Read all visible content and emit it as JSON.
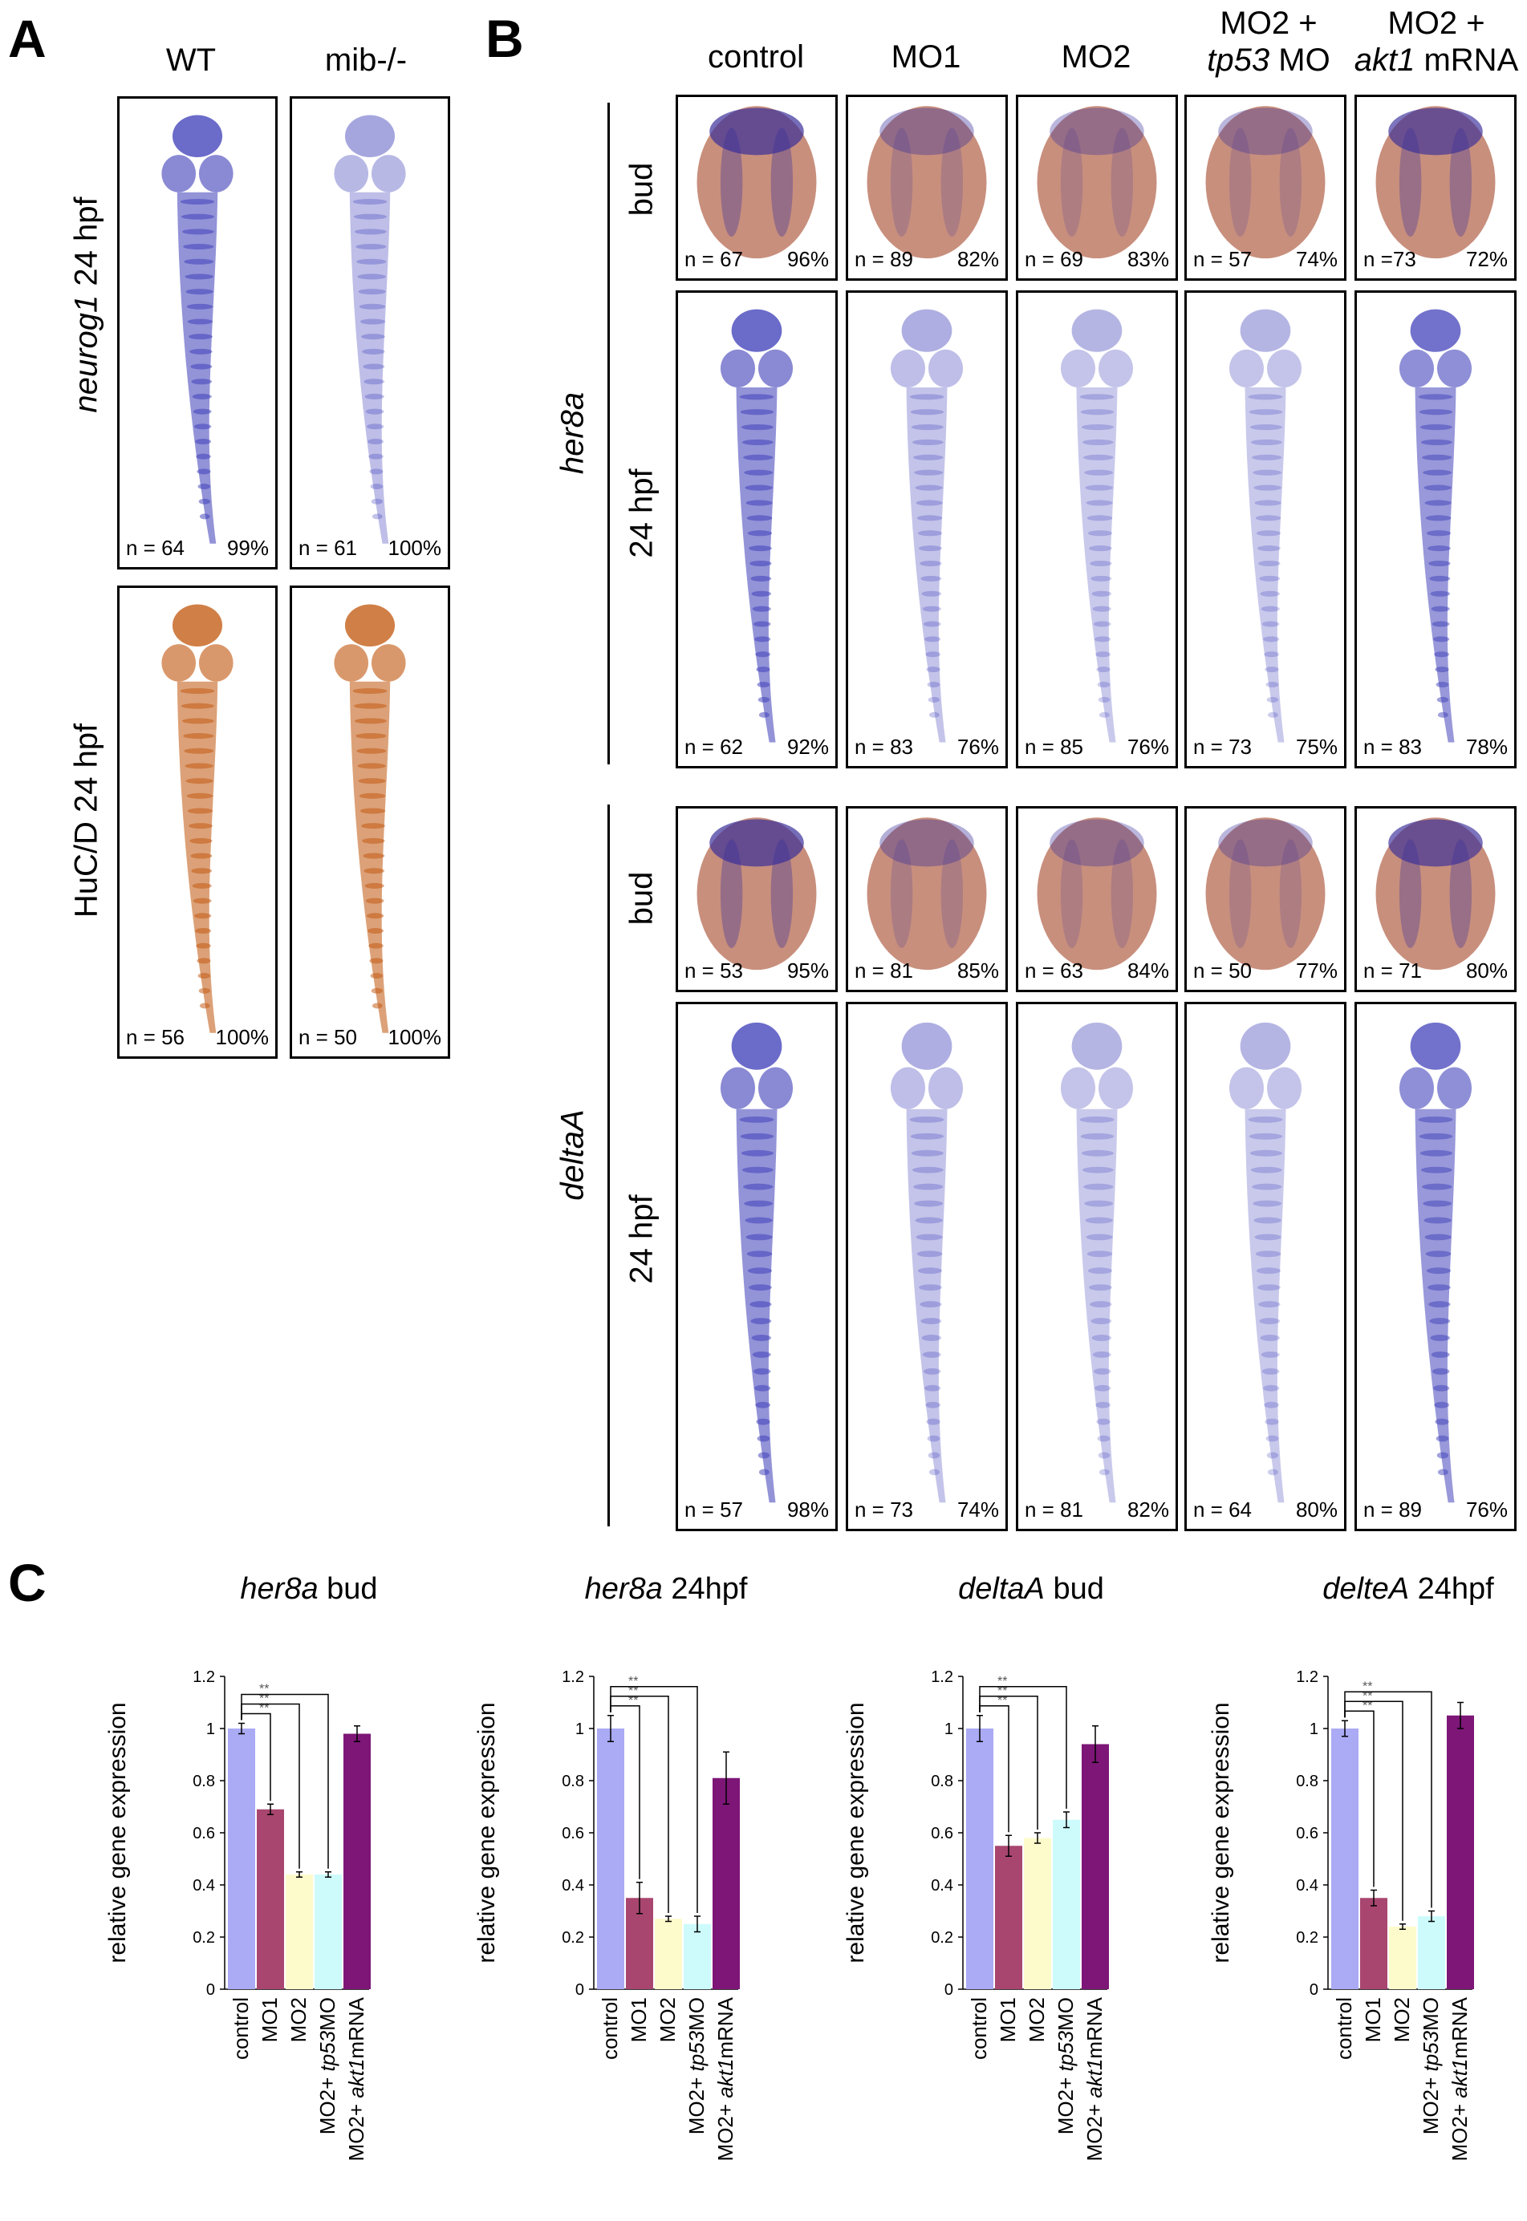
{
  "panel_a": {
    "letter": "A",
    "columns": [
      "WT",
      "mib-/-"
    ],
    "rows": [
      {
        "label_gene": "neurog1",
        "label_stage": " 24 hpf",
        "tiles": [
          {
            "n": "n = 64",
            "pct": "99%"
          },
          {
            "n": "n = 61",
            "pct": "100%"
          }
        ]
      },
      {
        "label_gene": "",
        "label_stage": "HuC/D 24 hpf",
        "tiles": [
          {
            "n": "n = 56",
            "pct": "100%"
          },
          {
            "n": "n = 50",
            "pct": "100%"
          }
        ]
      }
    ]
  },
  "panel_b": {
    "letter": "B",
    "columns": [
      {
        "line1": "control",
        "line2": "",
        "line2_it": "",
        "line2_rest": ""
      },
      {
        "line1": "MO1",
        "line2": "",
        "line2_it": "",
        "line2_rest": ""
      },
      {
        "line1": "MO2",
        "line2": "",
        "line2_it": "",
        "line2_rest": ""
      },
      {
        "line1": "MO2 +",
        "line2_it": "tp53",
        "line2_rest": " MO"
      },
      {
        "line1": "MO2 +",
        "line2_it": "akt1",
        "line2_rest": " mRNA"
      }
    ],
    "genes": [
      {
        "name": "her8a",
        "stage_labels": [
          "bud",
          "24 hpf"
        ],
        "bud": [
          {
            "n": "n = 67",
            "pct": "96%"
          },
          {
            "n": "n = 89",
            "pct": "82%"
          },
          {
            "n": "n = 69",
            "pct": "83%"
          },
          {
            "n": "n = 57",
            "pct": "74%"
          },
          {
            "n": "n =73",
            "pct": "72%"
          }
        ],
        "hpf": [
          {
            "n": "n = 62",
            "pct": "92%"
          },
          {
            "n": "n = 83",
            "pct": "76%"
          },
          {
            "n": "n = 85",
            "pct": "76%"
          },
          {
            "n": "n = 73",
            "pct": "75%"
          },
          {
            "n": "n = 83",
            "pct": "78%"
          }
        ]
      },
      {
        "name": "deltaA",
        "stage_labels": [
          "bud",
          "24 hpf"
        ],
        "bud": [
          {
            "n": "n = 53",
            "pct": "95%"
          },
          {
            "n": "n = 81",
            "pct": "85%"
          },
          {
            "n": "n = 63",
            "pct": "84%"
          },
          {
            "n": "n = 50",
            "pct": "77%"
          },
          {
            "n": "n = 71",
            "pct": "80%"
          }
        ],
        "hpf": [
          {
            "n": "n = 57",
            "pct": "98%"
          },
          {
            "n": "n = 73",
            "pct": "74%"
          },
          {
            "n": "n = 81",
            "pct": "82%"
          },
          {
            "n": "n = 64",
            "pct": "80%"
          },
          {
            "n": "n = 89",
            "pct": "76%"
          }
        ]
      }
    ]
  },
  "panel_c": {
    "letter": "C",
    "ylabel": "relative gene expression",
    "significance": "**",
    "bar_colors": [
      "#aaaaf5",
      "#a8466f",
      "#fdfbcb",
      "#cdfbfb",
      "#7d1677"
    ],
    "category_labels": [
      {
        "plain": "control",
        "it": ""
      },
      {
        "plain": "MO1",
        "it": ""
      },
      {
        "plain": "MO2",
        "it": ""
      },
      {
        "pre": "MO2+ ",
        "it": "tp53",
        "post": "MO"
      },
      {
        "pre": "MO2+ ",
        "it": "akt1",
        "post": "mRNA"
      }
    ]
  },
  "chart_data": [
    {
      "type": "bar",
      "title_it": "her8a",
      "title_rest": " bud",
      "categories": [
        "control",
        "MO1",
        "MO2",
        "MO2+ tp53MO",
        "MO2+ akt1mRNA"
      ],
      "values": [
        1.0,
        0.69,
        0.44,
        0.44,
        0.98
      ],
      "errors": [
        0.02,
        0.02,
        0.01,
        0.01,
        0.03
      ],
      "ylim": [
        0,
        1.2
      ],
      "yticks": [
        "0",
        "0.2",
        "0.4",
        "0.6",
        "0.8",
        "1",
        "1.2"
      ],
      "ylabel": "relative gene expression"
    },
    {
      "type": "bar",
      "title_it": "her8a",
      "title_rest": " 24hpf",
      "categories": [
        "control",
        "MO1",
        "MO2",
        "MO2+ tp53MO",
        "MO2+ akt1mRNA"
      ],
      "values": [
        1.0,
        0.35,
        0.27,
        0.25,
        0.81
      ],
      "errors": [
        0.05,
        0.06,
        0.01,
        0.03,
        0.1
      ],
      "ylim": [
        0,
        1.2
      ],
      "yticks": [
        "0",
        "0.2",
        "0.4",
        "0.6",
        "0.8",
        "1",
        "1.2"
      ],
      "ylabel": "relative gene expression"
    },
    {
      "type": "bar",
      "title_it": "deltaA",
      "title_rest": " bud",
      "categories": [
        "control",
        "MO1",
        "MO2",
        "MO2+ tp53MO",
        "MO2+ akt1mRNA"
      ],
      "values": [
        1.0,
        0.55,
        0.58,
        0.65,
        0.94
      ],
      "errors": [
        0.05,
        0.04,
        0.02,
        0.03,
        0.07
      ],
      "ylim": [
        0,
        1.2
      ],
      "yticks": [
        "0",
        "0.2",
        "0.4",
        "0.6",
        "0.8",
        "1",
        "1.2"
      ],
      "ylabel": "relative gene expression"
    },
    {
      "type": "bar",
      "title_it": "delteA",
      "title_rest": " 24hpf",
      "categories": [
        "control",
        "MO1",
        "MO2",
        "MO2+ tp53MO",
        "MO2+ akt1mRNA"
      ],
      "values": [
        1.0,
        0.35,
        0.24,
        0.28,
        1.05
      ],
      "errors": [
        0.03,
        0.03,
        0.01,
        0.02,
        0.05
      ],
      "ylim": [
        0,
        1.2
      ],
      "yticks": [
        "0",
        "0.2",
        "0.4",
        "0.6",
        "0.8",
        "1",
        "1.2"
      ],
      "ylabel": "relative gene expression"
    }
  ]
}
